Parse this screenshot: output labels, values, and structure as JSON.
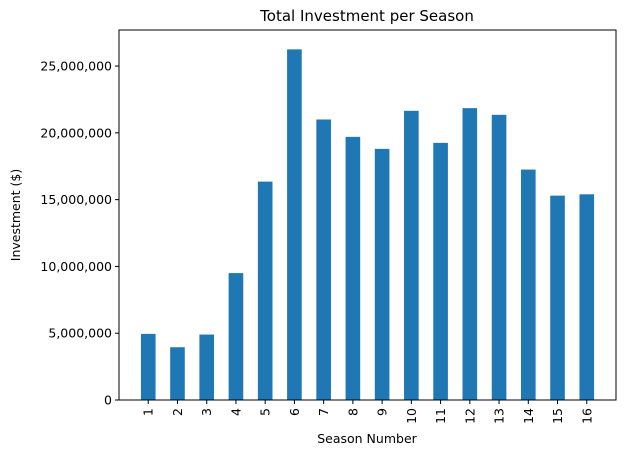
{
  "chart_data": {
    "type": "bar",
    "title": "Total Investment per Season",
    "xlabel": "Season Number",
    "ylabel": "Investment ($)",
    "categories": [
      "1",
      "2",
      "3",
      "4",
      "5",
      "6",
      "7",
      "8",
      "9",
      "10",
      "11",
      "12",
      "13",
      "14",
      "15",
      "16"
    ],
    "values": [
      4950000,
      3950000,
      4900000,
      9500000,
      16350000,
      26250000,
      21000000,
      19700000,
      18800000,
      21650000,
      19250000,
      21850000,
      21350000,
      17250000,
      15300000,
      15400000
    ],
    "ylim": [
      0,
      27700000
    ],
    "yticks": [
      0,
      5000000,
      10000000,
      15000000,
      20000000,
      25000000
    ],
    "ytick_labels": [
      "0",
      "5,000,000",
      "10,000,000",
      "15,000,000",
      "20,000,000",
      "25,000,000"
    ],
    "grid": false,
    "legend": "none",
    "bar_color": "#1f77b4"
  }
}
